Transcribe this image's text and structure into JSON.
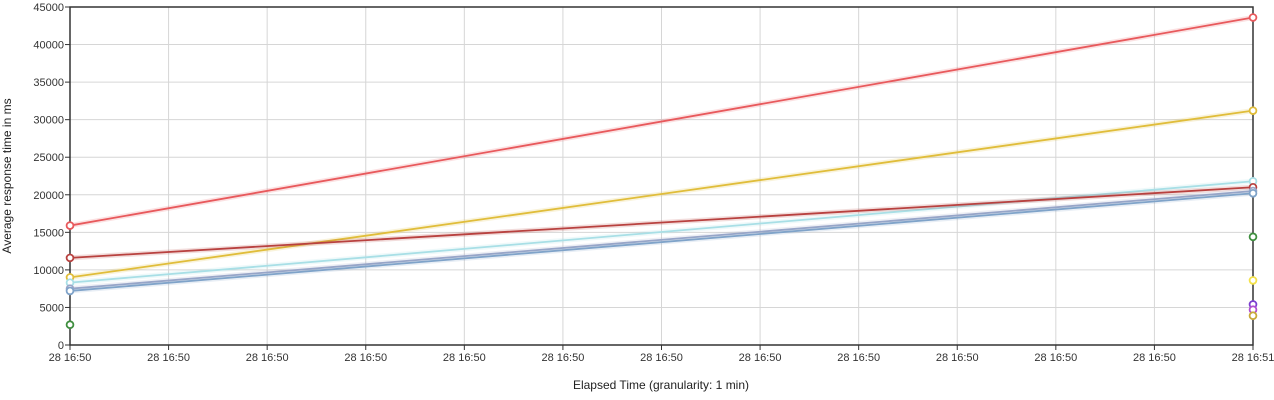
{
  "chart_data": {
    "type": "line",
    "xlabel": "Elapsed Time (granularity: 1 min)",
    "ylabel": "Average response time in ms",
    "ylim": [
      0,
      45000
    ],
    "y_ticks": [
      0,
      5000,
      10000,
      15000,
      20000,
      25000,
      30000,
      35000,
      40000,
      45000
    ],
    "x_tick_labels": [
      "28 16:50",
      "28 16:50",
      "28 16:50",
      "28 16:50",
      "28 16:50",
      "28 16:50",
      "28 16:50",
      "28 16:50",
      "28 16:50",
      "28 16:50",
      "28 16:50",
      "28 16:50",
      "28 16:51"
    ],
    "x": [
      "28 16:50",
      "28 16:51"
    ],
    "grid": true,
    "series": [
      {
        "color": "#e8595c",
        "values": [
          15900,
          43600
        ]
      },
      {
        "color": "#e0bd3a",
        "values": [
          9000,
          31200
        ]
      },
      {
        "color": "#a8dfe6",
        "values": [
          8300,
          21800
        ]
      },
      {
        "color": "#b8413f",
        "values": [
          11600,
          21000
        ]
      },
      {
        "color": "#9aa6c8",
        "values": [
          7500,
          20500
        ]
      },
      {
        "color": "#7fa3c9",
        "values": [
          7200,
          20200
        ]
      },
      {
        "color": "#3f8f3f",
        "values": [
          2700,
          null
        ]
      },
      {
        "color": "#3f8f3f",
        "values": [
          null,
          14400
        ]
      },
      {
        "color": "#f4e24a",
        "values": [
          null,
          8600
        ]
      },
      {
        "color": "#7b3fd0",
        "values": [
          null,
          5400
        ]
      },
      {
        "color": "#b04fd0",
        "values": [
          null,
          4700
        ]
      },
      {
        "color": "#c9a93a",
        "values": [
          null,
          3900
        ]
      }
    ]
  }
}
